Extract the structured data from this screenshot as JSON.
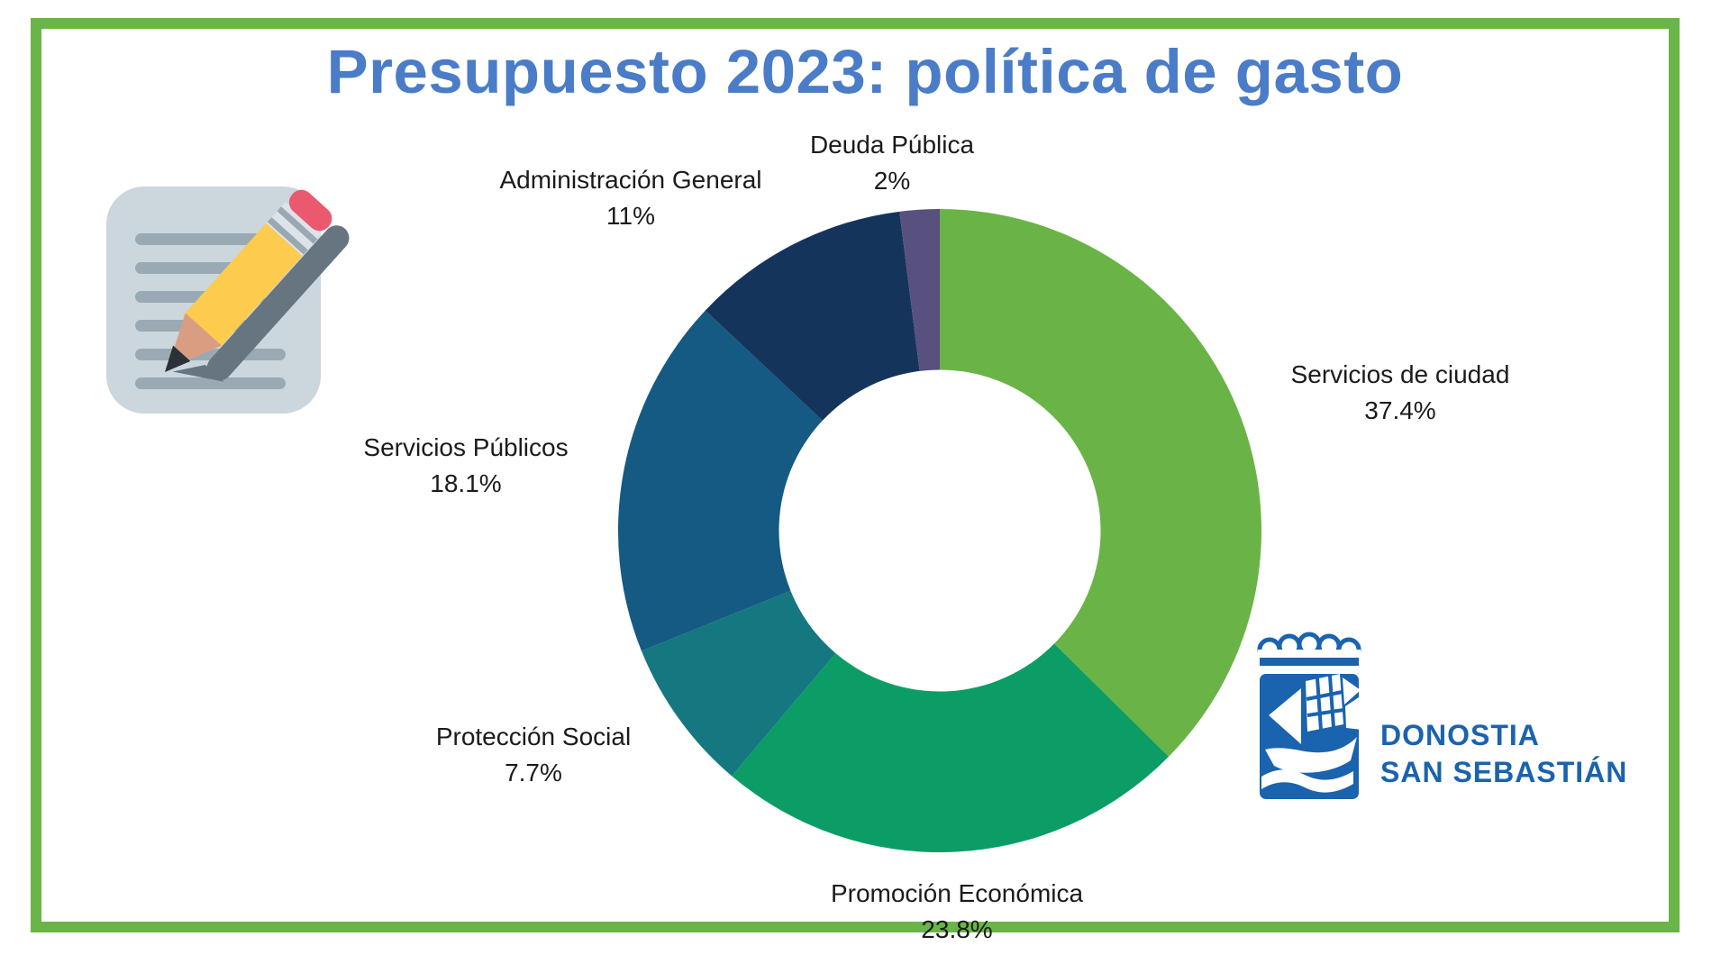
{
  "title": "Presupuesto 2023: política de gasto",
  "colors": {
    "frame_green": "#6ab547",
    "title_blue": "#4a7cc7",
    "label_text": "#1b1b1b",
    "logo_blue": "#1a63ae"
  },
  "icons": {
    "memo": "memo-pencil-icon",
    "crest": "donostia-sailing-ship-crest-icon"
  },
  "logo": {
    "line1": "DONOSTIA",
    "line2": "SAN SEBASTIÁN"
  },
  "chart_data": {
    "type": "pie",
    "subtype": "donut",
    "title": "Presupuesto 2023: política de gasto",
    "start_angle_deg": 0,
    "direction": "clockwise",
    "inner_radius_ratio": 0.5,
    "legend_position": "outside-labels",
    "slices": [
      {
        "label": "Servicios de ciudad",
        "value": 37.4,
        "display": "37.4%",
        "color": "#6ab346"
      },
      {
        "label": "Promoción Económica",
        "value": 23.8,
        "display": "23.8%",
        "color": "#0b9d65"
      },
      {
        "label": "Protección Social",
        "value": 7.7,
        "display": "7.7%",
        "color": "#15777f"
      },
      {
        "label": "Servicios Públicos",
        "value": 18.1,
        "display": "18.1%",
        "color": "#145a82"
      },
      {
        "label": "Administración General",
        "value": 11,
        "display": "11%",
        "color": "#15345c"
      },
      {
        "label": "Deuda Pública",
        "value": 2,
        "display": "2%",
        "color": "#58507f"
      }
    ]
  }
}
